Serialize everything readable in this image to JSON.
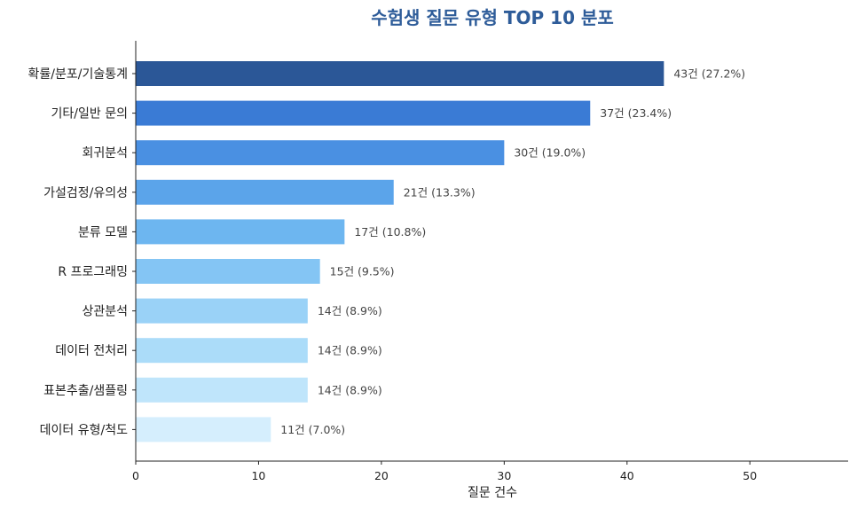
{
  "chart_data": {
    "type": "bar",
    "orientation": "horizontal",
    "title": "수험생 질문 유형 TOP 10 분포",
    "xlabel": "질문 건수",
    "ylabel": "",
    "xlim": [
      0,
      58
    ],
    "xticks": [
      0,
      10,
      20,
      30,
      40,
      50
    ],
    "grid": false,
    "categories": [
      "확률/분포/기술통계",
      "기타/일반 문의",
      "회귀분석",
      "가설검정/유의성",
      "분류 모델",
      "R 프로그래밍",
      "상관분석",
      "데이터 전처리",
      "표본추출/샘플링",
      "데이터 유형/척도"
    ],
    "values": [
      43,
      37,
      30,
      21,
      17,
      15,
      14,
      14,
      14,
      11
    ],
    "data_labels": [
      "43건 (27.2%)",
      "37건 (23.4%)",
      "30건 (19.0%)",
      "21건 (13.3%)",
      "17건 (10.8%)",
      "15건 (9.5%)",
      "14건 (8.9%)",
      "14건 (8.9%)",
      "14건 (8.9%)",
      "11건 (7.0%)"
    ],
    "colors": [
      "#2b5797",
      "#3a7bd5",
      "#4a90e2",
      "#5ba4ea",
      "#6db6f0",
      "#84c5f4",
      "#9ad2f7",
      "#abdcf9",
      "#bfe5fb",
      "#d5eefd"
    ]
  }
}
